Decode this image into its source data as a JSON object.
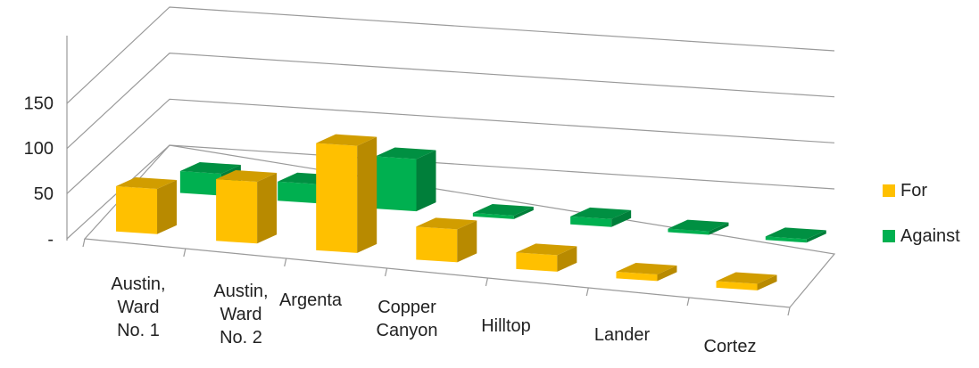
{
  "chart_data": {
    "type": "bar",
    "title": "",
    "xlabel": "",
    "ylabel": "",
    "categories": [
      [
        "Austin,",
        "Ward",
        "No. 1"
      ],
      [
        "Austin,",
        "Ward",
        "No. 2"
      ],
      [
        "Argenta"
      ],
      [
        "Copper",
        "Canyon"
      ],
      [
        "Hilltop"
      ],
      [
        "Lander"
      ],
      [
        "Cortez"
      ]
    ],
    "series": [
      {
        "name": "For",
        "color": "#FFC000",
        "values": [
          55,
          75,
          130,
          40,
          20,
          8,
          8
        ]
      },
      {
        "name": "Against",
        "color": "#00B050",
        "values": [
          25,
          22,
          60,
          4,
          9,
          4,
          4
        ]
      }
    ],
    "ylim": [
      0,
      150
    ],
    "yticks": [
      {
        "value": 0,
        "label": "-"
      },
      {
        "value": 50,
        "label": "50"
      },
      {
        "value": 100,
        "label": "100"
      },
      {
        "value": 150,
        "label": "150"
      }
    ],
    "grid": true,
    "legend_position": "right",
    "three_d": true
  }
}
